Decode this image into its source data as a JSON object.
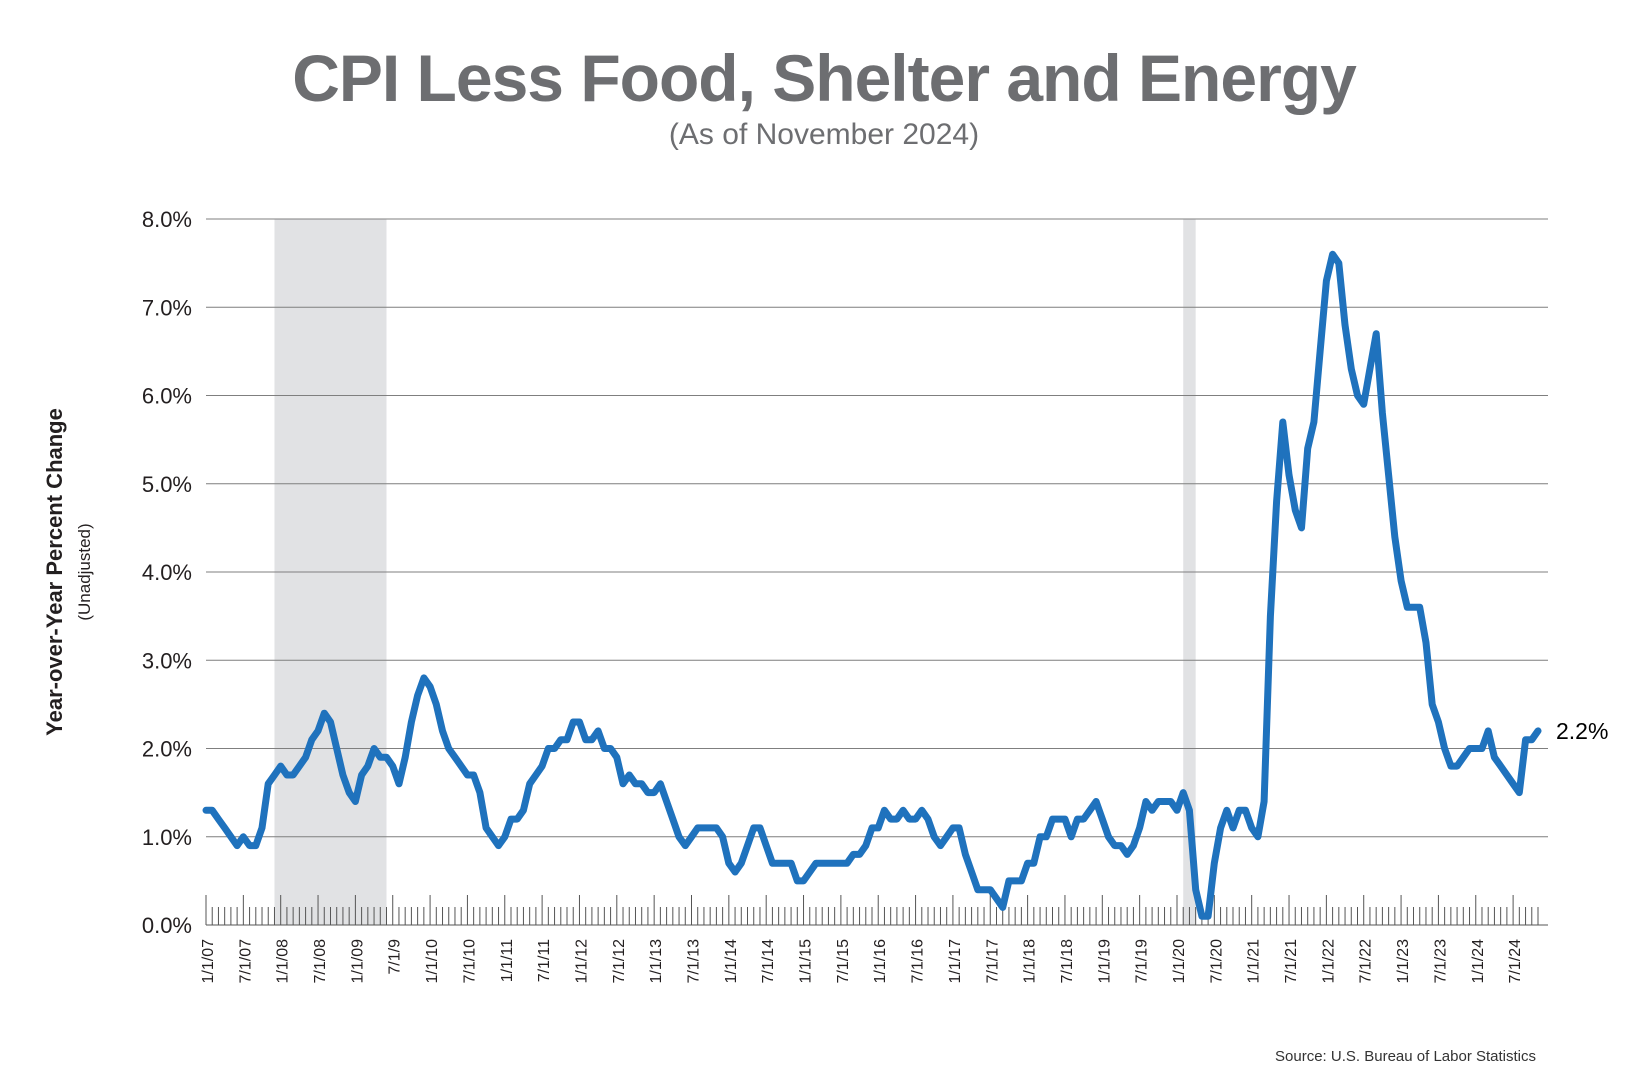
{
  "title": "CPI Less Food, Shelter and Energy",
  "subtitle": "(As of November 2024)",
  "source": "Source: U.S. Bureau of Labor Statistics",
  "colors": {
    "line": "#1f72bd",
    "grid": "#7f7f7f",
    "recession": "#e1e2e4",
    "title": "#6d6e71"
  },
  "chart_data": {
    "type": "line",
    "title": "CPI Less Food, Shelter and Energy",
    "subtitle": "(As of November 2024)",
    "ylabel": "Year-over-Year Percent Change",
    "ylabel_sub": "(Unadjusted)",
    "xlabel": "",
    "ylim": [
      0,
      8
    ],
    "x_range": [
      "2007-01",
      "2024-11"
    ],
    "yticks": [
      0,
      1,
      2,
      3,
      4,
      5,
      6,
      7,
      8
    ],
    "ytick_labels": [
      "0.0%",
      "1.0%",
      "2.0%",
      "3.0%",
      "4.0%",
      "5.0%",
      "6.0%",
      "7.0%",
      "8.0%"
    ],
    "xtick_labels": [
      "1/1/07",
      "7/1/07",
      "1/1/08",
      "7/1/08",
      "1/1/09",
      "7/1/9",
      "1/1/10",
      "7/1/10",
      "1/1/11",
      "7/1/11",
      "1/1/12",
      "7/1/12",
      "1/1/13",
      "7/1/13",
      "1/1/14",
      "7/1/14",
      "1/1/15",
      "7/1/15",
      "1/1/16",
      "7/1/16",
      "1/1/17",
      "7/1/17",
      "1/1/18",
      "7/1/18",
      "1/1/19",
      "7/1/19",
      "1/1/20",
      "7/1/20",
      "1/1/21",
      "7/1/21",
      "1/1/22",
      "7/1/22",
      "1/1/23",
      "7/1/23",
      "1/1/24",
      "7/1/24"
    ],
    "grid": true,
    "recessions": [
      {
        "start": "2007-12",
        "end": "2009-06"
      },
      {
        "start": "2020-02",
        "end": "2020-04"
      }
    ],
    "end_label": "2.2%",
    "series": [
      {
        "name": "CPI Less Food, Shelter and Energy YoY",
        "start": "2007-01",
        "values": [
          1.3,
          1.3,
          1.2,
          1.1,
          1.0,
          0.9,
          1.0,
          0.9,
          0.9,
          1.1,
          1.6,
          1.7,
          1.8,
          1.7,
          1.7,
          1.8,
          1.9,
          2.1,
          2.2,
          2.4,
          2.3,
          2.0,
          1.7,
          1.5,
          1.4,
          1.7,
          1.8,
          2.0,
          1.9,
          1.9,
          1.8,
          1.6,
          1.9,
          2.3,
          2.6,
          2.8,
          2.7,
          2.5,
          2.2,
          2.0,
          1.9,
          1.8,
          1.7,
          1.7,
          1.5,
          1.1,
          1.0,
          0.9,
          1.0,
          1.2,
          1.2,
          1.3,
          1.6,
          1.7,
          1.8,
          2.0,
          2.0,
          2.1,
          2.1,
          2.3,
          2.3,
          2.1,
          2.1,
          2.2,
          2.0,
          2.0,
          1.9,
          1.6,
          1.7,
          1.6,
          1.6,
          1.5,
          1.5,
          1.6,
          1.4,
          1.2,
          1.0,
          0.9,
          1.0,
          1.1,
          1.1,
          1.1,
          1.1,
          1.0,
          0.7,
          0.6,
          0.7,
          0.9,
          1.1,
          1.1,
          0.9,
          0.7,
          0.7,
          0.7,
          0.7,
          0.5,
          0.5,
          0.6,
          0.7,
          0.7,
          0.7,
          0.7,
          0.7,
          0.7,
          0.8,
          0.8,
          0.9,
          1.1,
          1.1,
          1.3,
          1.2,
          1.2,
          1.3,
          1.2,
          1.2,
          1.3,
          1.2,
          1.0,
          0.9,
          1.0,
          1.1,
          1.1,
          0.8,
          0.6,
          0.4,
          0.4,
          0.4,
          0.3,
          0.2,
          0.5,
          0.5,
          0.5,
          0.7,
          0.7,
          1.0,
          1.0,
          1.2,
          1.2,
          1.2,
          1.0,
          1.2,
          1.2,
          1.3,
          1.4,
          1.2,
          1.0,
          0.9,
          0.9,
          0.8,
          0.9,
          1.1,
          1.4,
          1.3,
          1.4,
          1.4,
          1.4,
          1.3,
          1.5,
          1.3,
          0.4,
          0.1,
          0.1,
          0.7,
          1.1,
          1.3,
          1.1,
          1.3,
          1.3,
          1.1,
          1.0,
          1.4,
          3.5,
          4.8,
          5.7,
          5.1,
          4.7,
          4.5,
          5.4,
          5.7,
          6.5,
          7.3,
          7.6,
          7.5,
          6.8,
          6.3,
          6.0,
          5.9,
          6.3,
          6.7,
          5.8,
          5.1,
          4.4,
          3.9,
          3.6,
          3.6,
          3.6,
          3.2,
          2.5,
          2.3,
          2.0,
          1.8,
          1.8,
          1.9,
          2.0,
          2.0,
          2.0,
          2.2,
          1.9,
          1.8,
          1.7,
          1.6,
          1.5,
          2.1,
          2.1,
          2.2
        ]
      }
    ]
  }
}
